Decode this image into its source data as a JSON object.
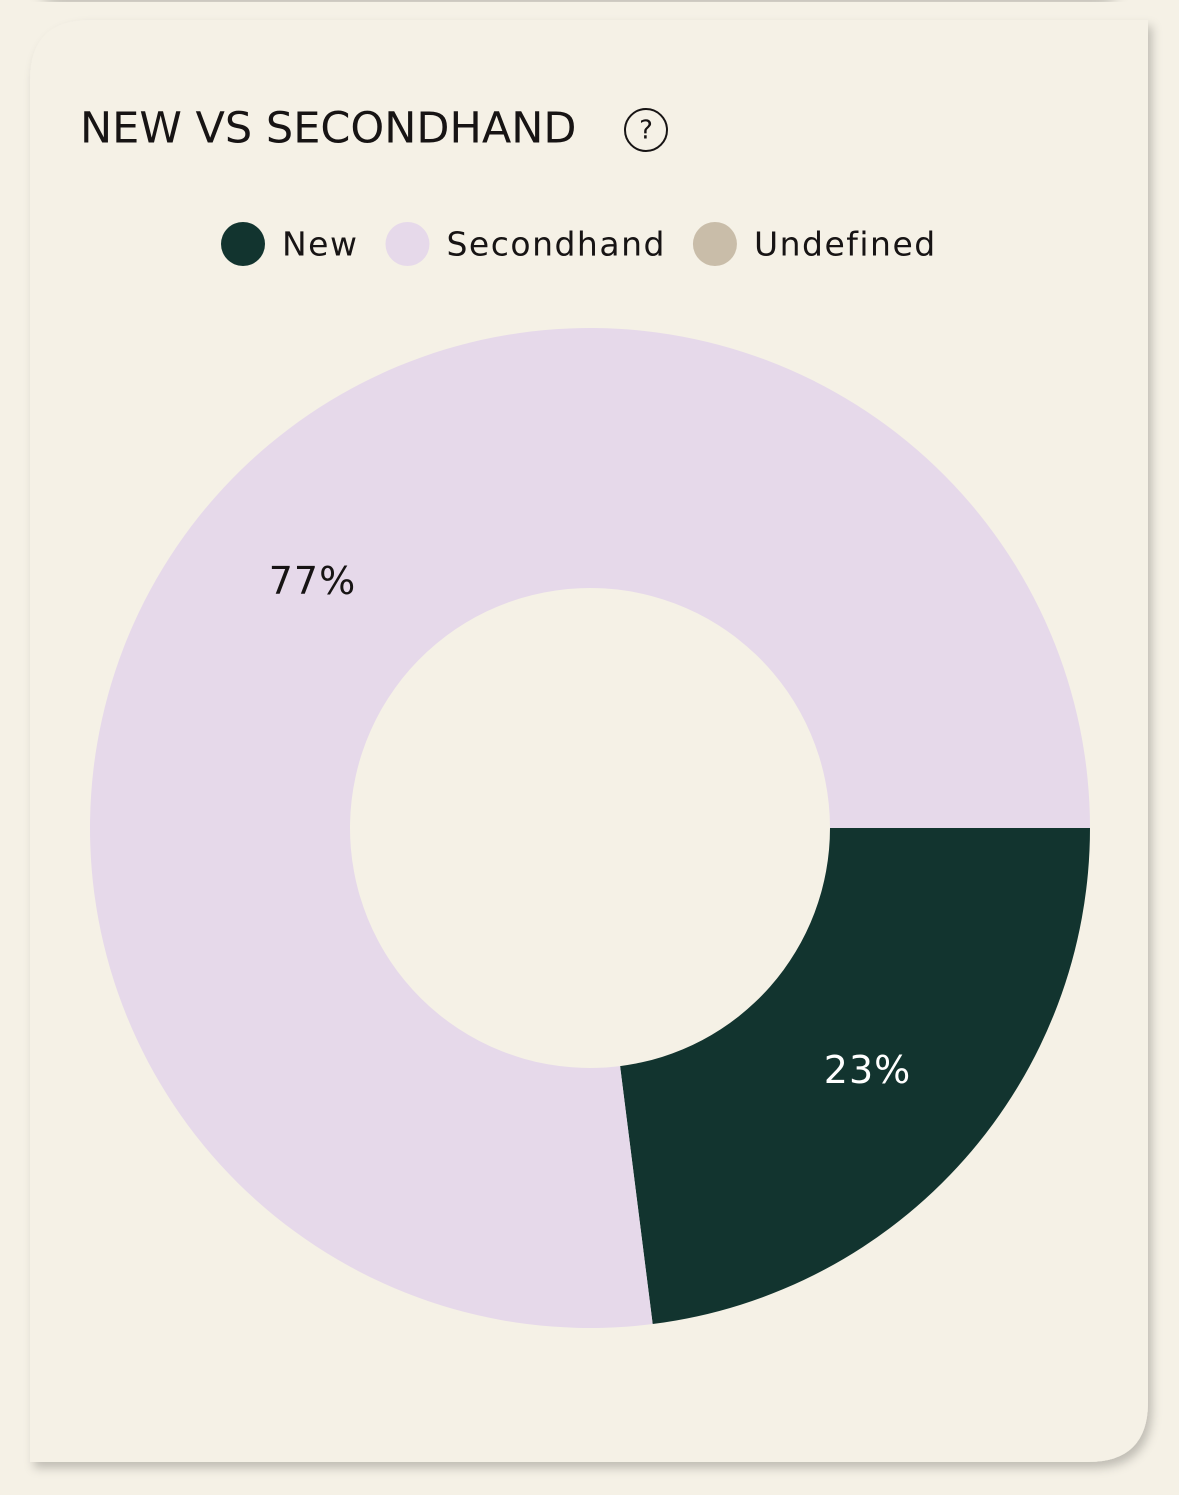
{
  "chart_data": {
    "type": "donut",
    "title": "NEW VS SECONDHAND",
    "categories": [
      "New",
      "Secondhand",
      "Undefined"
    ],
    "values": [
      23,
      77,
      0
    ],
    "value_labels": [
      "23%",
      "77%",
      null
    ],
    "colors": [
      "#12342f",
      "#e6d9ea",
      "#c9bda9"
    ],
    "legend": "top"
  }
}
